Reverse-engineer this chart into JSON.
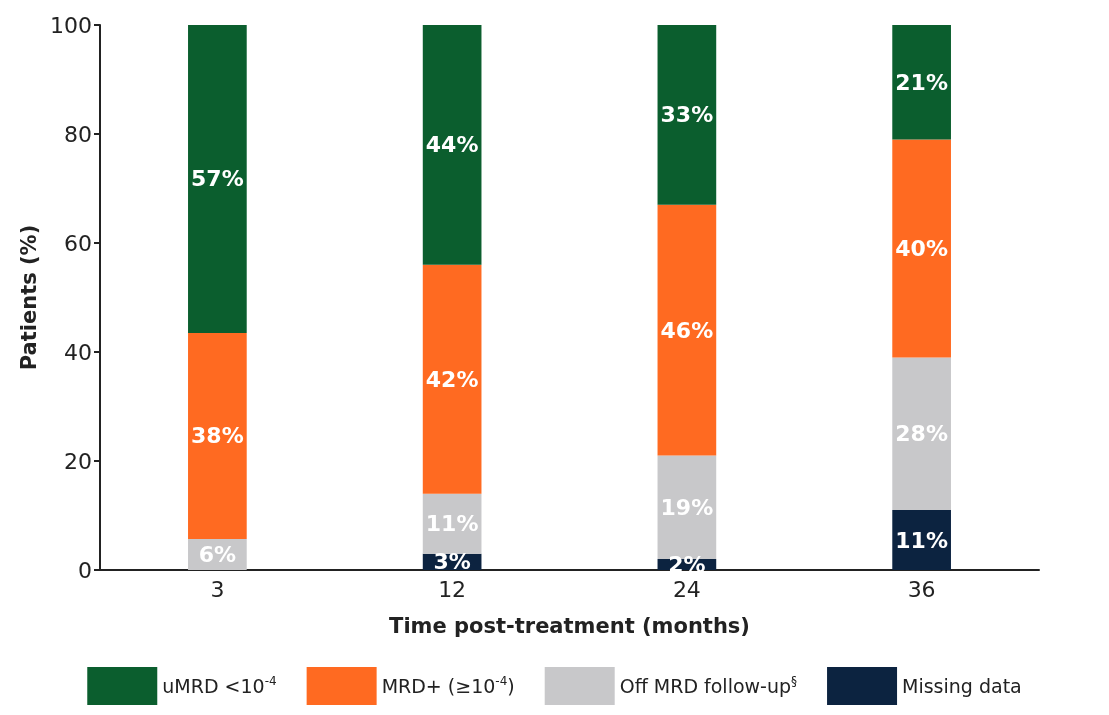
{
  "chart_data": {
    "type": "bar",
    "stacked": true,
    "xlabel": "Time post-treatment (months)",
    "ylabel": "Patients (%)",
    "categories": [
      "3",
      "12",
      "24",
      "36"
    ],
    "ylim": [
      0,
      100
    ],
    "yticks": [
      0,
      20,
      40,
      60,
      80,
      100
    ],
    "grid": false,
    "legend": "bottom",
    "series": [
      {
        "name": "Missing data",
        "color": "#0c2340",
        "values": [
          null,
          3,
          2,
          11
        ],
        "value_labels": [
          null,
          "3%",
          "2%",
          "11%"
        ]
      },
      {
        "name": "Off MRD follow-up$^{§}$",
        "color": "#c8c8ca",
        "values": [
          5.7,
          11,
          19,
          28
        ],
        "value_labels": [
          "6%",
          "11%",
          "19%",
          "28%"
        ]
      },
      {
        "name": "MRD+ (≥10$^{-4}$)",
        "color": "#ff6a21",
        "values": [
          37.8,
          42,
          46,
          40
        ],
        "value_labels": [
          "38%",
          "42%",
          "46%",
          "40%"
        ]
      },
      {
        "name": "uMRD <10$^{-4}$",
        "color": "#0b5e2e",
        "values": [
          56.5,
          44,
          33,
          21
        ],
        "value_labels": [
          "57%",
          "44%",
          "33%",
          "21%"
        ]
      }
    ]
  }
}
